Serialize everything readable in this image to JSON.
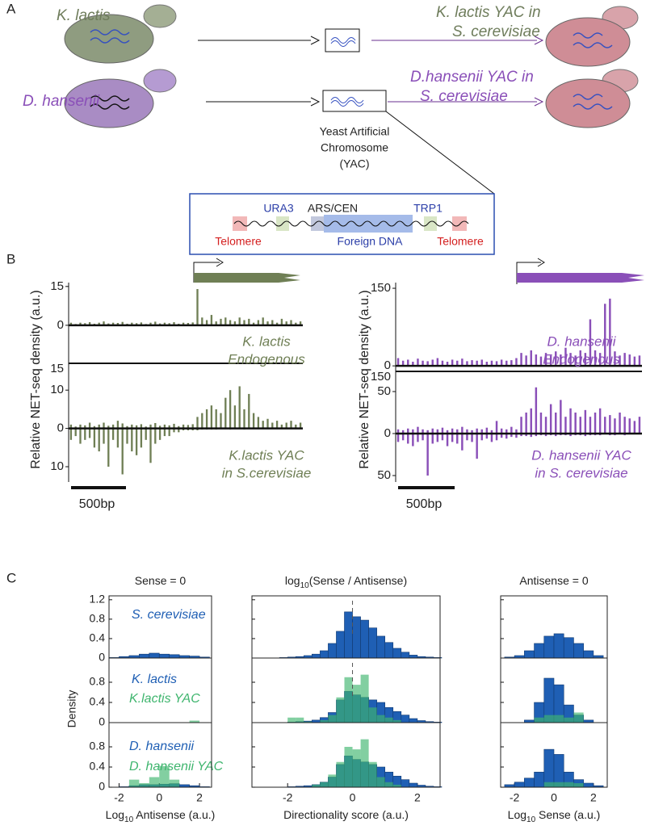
{
  "panel_labels": [
    "A",
    "B",
    "C"
  ],
  "panel_a": {
    "rows": [
      {
        "species": "K. lactis",
        "yac_line1": "K. lactis YAC in",
        "yac_line2": "S. cerevisiae"
      },
      {
        "species": "D. hansenii",
        "yac_line1": "D.hansenii YAC in",
        "yac_line2": "S. cerevisiae"
      }
    ],
    "yac_caption": [
      "Yeast Artificial",
      "Chromosome",
      "(YAC)"
    ],
    "construct": {
      "top": [
        "URA3",
        "ARS/CEN",
        "TRP1"
      ],
      "bottom": [
        "Telomere",
        "Foreign DNA",
        "Telomere"
      ]
    }
  },
  "panel_b": {
    "ylabel": "Relative NET-seq density (a.u.)",
    "scale_bar": "500bp",
    "plots": [
      {
        "color": "#6f7f55",
        "top": {
          "ylim": [
            -14.7,
            16.5
          ],
          "yticks": [
            0,
            15
          ],
          "label": [
            "K. lactis",
            "Endogenous"
          ],
          "sense": [
            1,
            0.5,
            1,
            0.8,
            1.2,
            0.6,
            1,
            1.5,
            0.7,
            1,
            0.9,
            1.3,
            0.6,
            1,
            0.8,
            1.1,
            0.5,
            1,
            1.4,
            0.7,
            1,
            0.8,
            1.2,
            0.6,
            1,
            0.9,
            1.1,
            14,
            3,
            2,
            4,
            1.5,
            2.5,
            3,
            2,
            1.5,
            3,
            2,
            2.5,
            1,
            2,
            3,
            1.5,
            2,
            1,
            2.5,
            1.5,
            2,
            1,
            1.5
          ]
        },
        "bottom": {
          "ylim": [
            -14,
            17
          ],
          "yticks": [
            10,
            0,
            {
              "value": -10,
              "label": "10"
            }
          ],
          "top_label": "15",
          "label": [
            "K.lactis YAC",
            "in S.cerevisiae"
          ],
          "sense": [
            1,
            0.5,
            1,
            0.8,
            1.5,
            0.6,
            1,
            1.5,
            0.7,
            1,
            2,
            1.3,
            0.6,
            1,
            0.8,
            1.1,
            0.5,
            1,
            1.4,
            0.7,
            1,
            0.8,
            1.2,
            0.6,
            1,
            0.9,
            1.1,
            3,
            4,
            5,
            6,
            5,
            4,
            8,
            10,
            6,
            11,
            5,
            9,
            4,
            3,
            2,
            2.5,
            1.5,
            2,
            1,
            1.5,
            2,
            1,
            1.5
          ],
          "antisense": [
            -3,
            -2,
            -4,
            -3,
            -2.5,
            -5,
            -6,
            -4,
            -10,
            -3,
            -5,
            -12,
            -4,
            -6,
            -7,
            -5,
            -3,
            -9,
            -4,
            -3,
            -2,
            -2,
            -1,
            -1,
            -0.5,
            -0.5,
            -0.5,
            -0.5,
            -0.3,
            -0.3,
            -0.3,
            -0.3,
            -0.2,
            -0.2,
            -0.3,
            -0.2,
            -0.2,
            -0.3,
            -0.2,
            -0.2,
            -0.1,
            -0.2,
            -0.2,
            -0.1,
            -0.2,
            -0.1,
            -0.1,
            -0.2,
            -0.1,
            -0.1
          ]
        }
      },
      {
        "color": "#8a4fb8",
        "top": {
          "ylim": [
            -10.7,
            161
          ],
          "yticks": [
            0,
            150
          ],
          "label": [
            "D. hansenii",
            "Endogenous"
          ],
          "sense": [
            15,
            10,
            12,
            8,
            14,
            10,
            9,
            12,
            15,
            10,
            8,
            12,
            10,
            14,
            9,
            11,
            10,
            12,
            8,
            10,
            9,
            12,
            10,
            11,
            15,
            25,
            20,
            30,
            22,
            18,
            25,
            20,
            28,
            22,
            35,
            25,
            20,
            30,
            25,
            90,
            30,
            25,
            120,
            130,
            28,
            20,
            25,
            22,
            18,
            20
          ]
        },
        "bottom": {
          "ylim": [
            -57.7,
            74
          ],
          "yticks": [
            50,
            0,
            {
              "value": -50,
              "label": "50"
            }
          ],
          "top_label": "150",
          "label": [
            "D. hansenii YAC",
            "in S. cerevisiae"
          ],
          "sense": [
            5,
            4,
            6,
            5,
            8,
            5,
            4,
            6,
            5,
            7,
            4,
            6,
            5,
            8,
            5,
            4,
            6,
            5,
            7,
            4,
            15,
            6,
            5,
            8,
            5,
            20,
            25,
            30,
            55,
            25,
            20,
            35,
            25,
            40,
            20,
            30,
            25,
            20,
            28,
            20,
            25,
            30,
            20,
            22,
            18,
            25,
            20,
            18,
            15,
            20
          ],
          "antisense": [
            -10,
            -8,
            -12,
            -15,
            -10,
            -8,
            -50,
            -12,
            -10,
            -8,
            -15,
            -10,
            -12,
            -20,
            -8,
            -10,
            -30,
            -8,
            -6,
            -10,
            -8,
            -5,
            -6,
            -4,
            -5,
            -3,
            -3,
            -4,
            -3,
            -2,
            -3,
            -2,
            -3,
            -2,
            -2,
            -3,
            -2,
            -2,
            -3,
            -2,
            -2,
            -2,
            -1,
            -2,
            -2,
            -1,
            -2,
            -1,
            -1,
            -1
          ]
        }
      }
    ]
  },
  "panel_c": {
    "ylabel": "Density",
    "columns": [
      {
        "title": [
          "Sense = 0"
        ],
        "xlabel": [
          "Log",
          "10",
          " Antisense (a.u.)"
        ],
        "xlim": [
          -2.5,
          2.6
        ],
        "xticks": [
          -2,
          0,
          2
        ],
        "bins": [
          -2.5,
          -2,
          -1.5,
          -1,
          -0.5,
          0,
          0.5,
          1,
          1.5,
          2,
          2.5
        ]
      },
      {
        "title": [
          "log",
          "10",
          "(Sense / Antisense)"
        ],
        "xlabel": [
          "Directionality score (a.u.)"
        ],
        "xlim": [
          -3.1,
          2.7
        ],
        "xticks": [
          -2,
          0,
          2
        ],
        "bins": [
          -2.25,
          -2,
          -1.75,
          -1.5,
          -1.25,
          -1,
          -0.75,
          -0.5,
          -0.25,
          0,
          0.25,
          0.5,
          0.75,
          1,
          1.25,
          1.5,
          1.75,
          2,
          2.25,
          2.5,
          2.75
        ]
      },
      {
        "title": [
          "Antisense = 0"
        ],
        "xlabel": [
          "Log",
          "10",
          " Sense (a.u.)"
        ],
        "xlim": [
          -2.7,
          2.7
        ],
        "xticks": [
          -2,
          0,
          2
        ],
        "bins": [
          -2.5,
          -2,
          -1.5,
          -1,
          -0.5,
          0,
          0.5,
          1,
          1.5,
          2,
          2.5
        ]
      }
    ],
    "rows": [
      {
        "ylim": [
          0,
          1.28
        ],
        "yticks": [
          0,
          0.4,
          0.8,
          1.2
        ],
        "series": [
          {
            "name": "S. cerevisiae",
            "color": "#1f5fb4",
            "counts": [
              [
                0.01,
                0.03,
                0.05,
                0.08,
                0.1,
                0.08,
                0.07,
                0.05,
                0.04,
                0.02
              ],
              [
                0.01,
                0.02,
                0.03,
                0.05,
                0.08,
                0.15,
                0.3,
                0.55,
                0.95,
                0.85,
                0.78,
                0.62,
                0.45,
                0.32,
                0.2,
                0.12,
                0.06,
                0.03,
                0.02,
                0.01
              ],
              [
                0.02,
                0.05,
                0.15,
                0.3,
                0.45,
                0.5,
                0.42,
                0.3,
                0.15,
                0.05
              ]
            ]
          }
        ]
      },
      {
        "ylim": [
          0,
          1.28
        ],
        "yticks": [
          0,
          0.4,
          0.8
        ],
        "series": [
          {
            "name": "K. lactis",
            "color": "#1f5fb4",
            "counts": [
              [
                0,
                0,
                0,
                0,
                0,
                0,
                0,
                0,
                0,
                0
              ],
              [
                0,
                0.01,
                0.02,
                0.03,
                0.05,
                0.1,
                0.2,
                0.45,
                0.62,
                0.55,
                0.5,
                0.45,
                0.4,
                0.3,
                0.22,
                0.15,
                0.08,
                0.04,
                0.02,
                0.01
              ],
              [
                0,
                0,
                0.05,
                0.4,
                0.88,
                0.75,
                0.35,
                0.15,
                0.05,
                0
              ]
            ]
          },
          {
            "name": "K.lactis YAC",
            "color": "#3fb56e",
            "counts": [
              [
                0,
                0,
                0,
                0,
                0,
                0,
                0,
                0,
                0.04,
                0
              ],
              [
                0,
                0.1,
                0.1,
                0.02,
                0,
                0.05,
                0.15,
                0.5,
                0.9,
                0.75,
                0.95,
                0.3,
                0.15,
                0.1,
                0.05,
                0,
                0,
                0,
                0,
                0
              ],
              [
                0,
                0,
                0,
                0.1,
                0.15,
                0.15,
                0.1,
                0.2,
                0,
                0
              ]
            ]
          }
        ]
      },
      {
        "ylim": [
          0,
          1.28
        ],
        "yticks": [
          0,
          0.4,
          0.8
        ],
        "series": [
          {
            "name": "D. hansenii",
            "color": "#1f5fb4",
            "counts": [
              [
                0,
                0.01,
                0.03,
                0.05,
                0.05,
                0.06,
                0.07,
                0.05,
                0.03,
                0.01
              ],
              [
                0,
                0.01,
                0.02,
                0.03,
                0.05,
                0.1,
                0.2,
                0.45,
                0.62,
                0.55,
                0.5,
                0.45,
                0.4,
                0.3,
                0.22,
                0.15,
                0.08,
                0.04,
                0.02,
                0.01
              ],
              [
                0.05,
                0.1,
                0.18,
                0.3,
                0.75,
                0.65,
                0.3,
                0.15,
                0.08,
                0.03
              ]
            ]
          },
          {
            "name": "D. hansenii YAC",
            "color": "#3fb56e",
            "counts": [
              [
                0,
                0,
                0.15,
                0.08,
                0.2,
                0.42,
                0.15,
                0,
                0,
                0
              ],
              [
                0,
                0,
                0,
                0,
                0.05,
                0.1,
                0.25,
                0.5,
                0.8,
                0.75,
                0.95,
                0.5,
                0.2,
                0.1,
                0.05,
                0,
                0,
                0,
                0,
                0
              ],
              [
                0,
                0,
                0,
                0,
                0.1,
                0.1,
                0.1,
                0.08,
                0,
                0
              ]
            ]
          }
        ]
      }
    ]
  }
}
